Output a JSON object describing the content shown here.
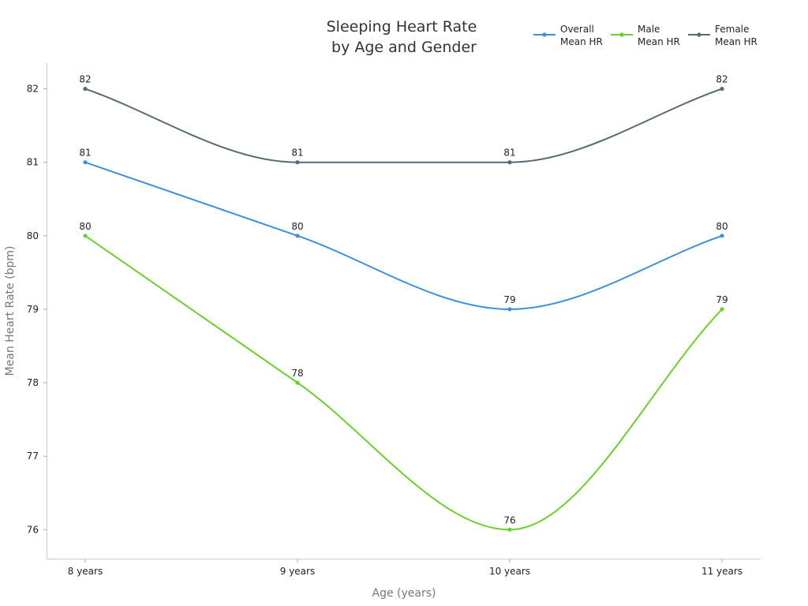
{
  "chart_data": {
    "type": "line",
    "title": [
      "Sleeping Heart Rate",
      "by Age and Gender"
    ],
    "xlabel": "Age (years)",
    "ylabel": "Mean Heart Rate (bpm)",
    "categories": [
      "8 years",
      "9 years",
      "10 years",
      "11 years"
    ],
    "ylim": [
      75.6,
      82.35
    ],
    "yticks": [
      76,
      77,
      78,
      79,
      80,
      81,
      82
    ],
    "grid": false,
    "smooth": true,
    "legend_position": "top-right",
    "series": [
      {
        "name": [
          "Overall",
          "Mean HR"
        ],
        "color": "#3b8fdc",
        "values": [
          81,
          80,
          79,
          80
        ]
      },
      {
        "name": [
          "Male",
          "Mean HR"
        ],
        "color": "#6ad02b",
        "values": [
          80,
          78,
          76,
          79
        ]
      },
      {
        "name": [
          "Female",
          "Mean HR"
        ],
        "color": "#556973",
        "values": [
          82,
          81,
          81,
          82
        ]
      }
    ]
  }
}
